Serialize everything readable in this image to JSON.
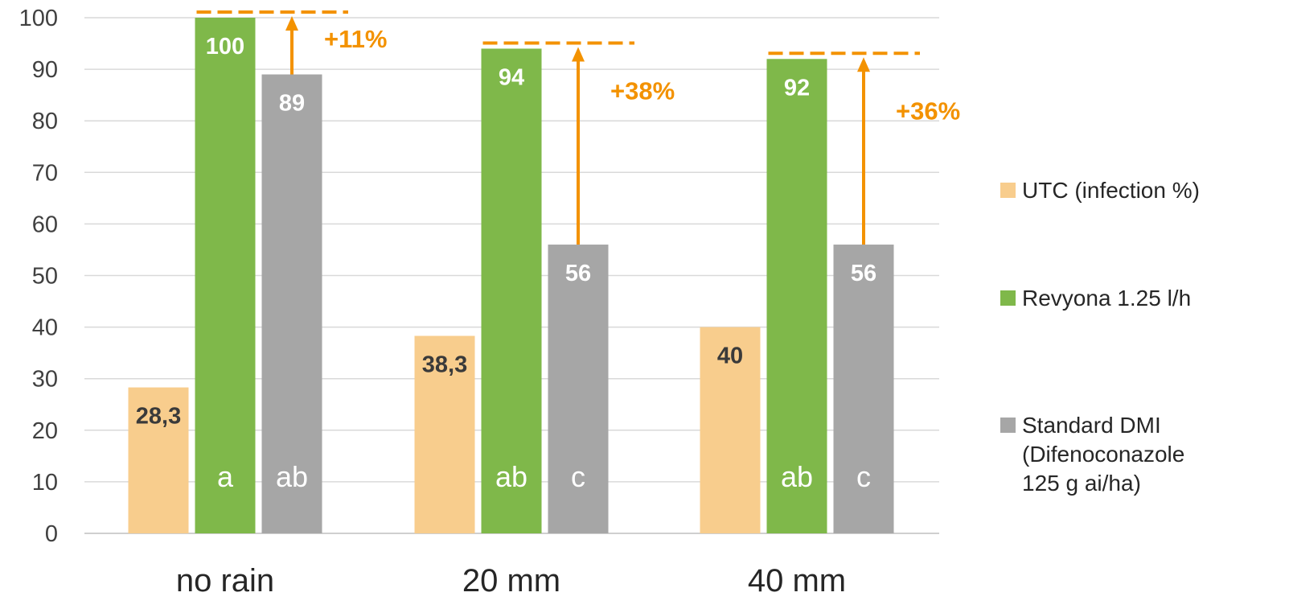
{
  "colors": {
    "utc": "#f8cd8d",
    "revyona": "#7fb84a",
    "dmi": "#a6a6a6",
    "accent": "#f39200",
    "grid": "#d9d9d9",
    "label_dark": "#3a3a3a",
    "label_light": "#ffffff"
  },
  "chart_data": {
    "type": "bar",
    "categories": [
      "no rain",
      "20 mm",
      "40 mm"
    ],
    "ylim": [
      0,
      100
    ],
    "yticks": [
      "0",
      "10",
      "20",
      "30",
      "40",
      "50",
      "60",
      "70",
      "80",
      "90",
      "100"
    ],
    "grid": true,
    "legend_position": "right",
    "series": [
      {
        "name": "UTC (infection %)",
        "color_key": "utc",
        "values": [
          28.3,
          38.3,
          40
        ],
        "data_labels": [
          "28,3",
          "38,3",
          "40"
        ],
        "significance": [
          "",
          "",
          ""
        ]
      },
      {
        "name": "Revyona 1.25 l/h",
        "color_key": "revyona",
        "values": [
          100,
          94,
          92
        ],
        "data_labels": [
          "100",
          "94",
          "92"
        ],
        "significance": [
          "a",
          "ab",
          "ab"
        ]
      },
      {
        "name": "Standard DMI (Difenoconazole 125 g ai/ha)",
        "legend_lines": [
          "Standard DMI",
          "(Difenoconazole",
          "125 g ai/ha)"
        ],
        "color_key": "dmi",
        "values": [
          89,
          56,
          56
        ],
        "data_labels": [
          "89",
          "56",
          "56"
        ],
        "significance": [
          "ab",
          "c",
          "c"
        ]
      }
    ],
    "annotations": [
      {
        "category": "no rain",
        "text": "+11%",
        "from": 89,
        "to": 100
      },
      {
        "category": "20 mm",
        "text": "+38%",
        "from": 56,
        "to": 94
      },
      {
        "category": "40 mm",
        "text": "+36%",
        "from": 56,
        "to": 92
      }
    ]
  }
}
